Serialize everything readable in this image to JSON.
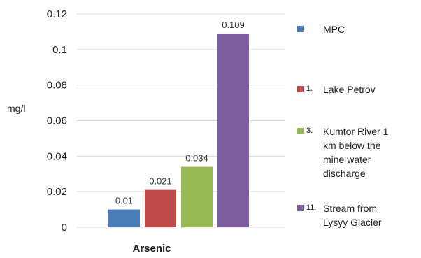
{
  "chart_data": {
    "type": "bar",
    "categories": [
      "Arsenic"
    ],
    "series": [
      {
        "name": "MPC",
        "number": "",
        "values": [
          0.01
        ],
        "color": "#4a7ebb"
      },
      {
        "name": "Lake Petrov",
        "number": "1.",
        "values": [
          0.021
        ],
        "color": "#be4b48"
      },
      {
        "name": "Kumtor River 1 km below the mine water discharge",
        "number": "3.",
        "values": [
          0.034
        ],
        "color": "#98b954"
      },
      {
        "name": "Stream from Lysyy Glacier",
        "number": "11.",
        "values": [
          0.109
        ],
        "color": "#7d5fa0"
      }
    ],
    "data_labels": [
      "0.01",
      "0.021",
      "0.034",
      "0.109"
    ],
    "ylabel": "mg/l",
    "xlabel": "Arsenic",
    "ylim": [
      0,
      0.12
    ],
    "yticks": [
      "0",
      "0.02",
      "0.04",
      "0.06",
      "0.08",
      "0.1",
      "0.12"
    ],
    "grid": true,
    "legend_position": "right"
  },
  "legend": {
    "items": [
      {
        "number": "",
        "lines": [
          "MPC"
        ],
        "color": "#4a7ebb"
      },
      {
        "number": "1.",
        "lines": [
          "Lake Petrov"
        ],
        "color": "#be4b48"
      },
      {
        "number": "3.",
        "lines": [
          "Kumtor River 1",
          "km below the",
          "mine water",
          "discharge"
        ],
        "color": "#98b954"
      },
      {
        "number": "11.",
        "lines": [
          "Stream from",
          "Lysyy Glacier"
        ],
        "color": "#7d5fa0"
      }
    ]
  }
}
